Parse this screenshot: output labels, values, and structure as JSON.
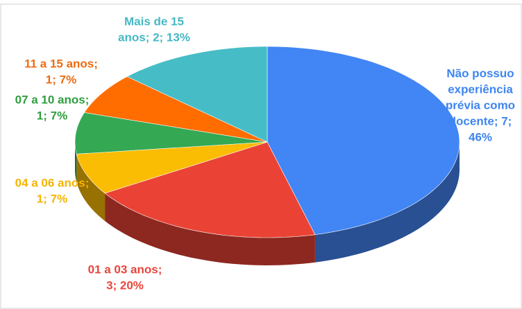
{
  "chart_data": {
    "type": "pie3d",
    "values": [
      46,
      20,
      7,
      7,
      7,
      13
    ],
    "value_labels": [
      [
        "Não possuo",
        "experiência",
        "prévia como",
        "docente; 7;",
        "46%"
      ],
      [
        "01 a 03 anos;",
        "3; 20%"
      ],
      [
        "04 a 06 anos;",
        "1; 7%"
      ],
      [
        "07 a 10 anos;",
        "1; 7%"
      ],
      [
        "11 a 15 anos;",
        "1; 7%"
      ],
      [
        "Mais de 15",
        "anos; 2; 13%"
      ]
    ],
    "colors": [
      "#4285f4",
      "#ea4335",
      "#fbbc04",
      "#34a853",
      "#ff6d01",
      "#46bdc6"
    ],
    "label_colors": [
      "#3d85f0",
      "#e8453c",
      "#f5b400",
      "#2e9e3e",
      "#f06a10",
      "#46b8c4"
    ]
  }
}
